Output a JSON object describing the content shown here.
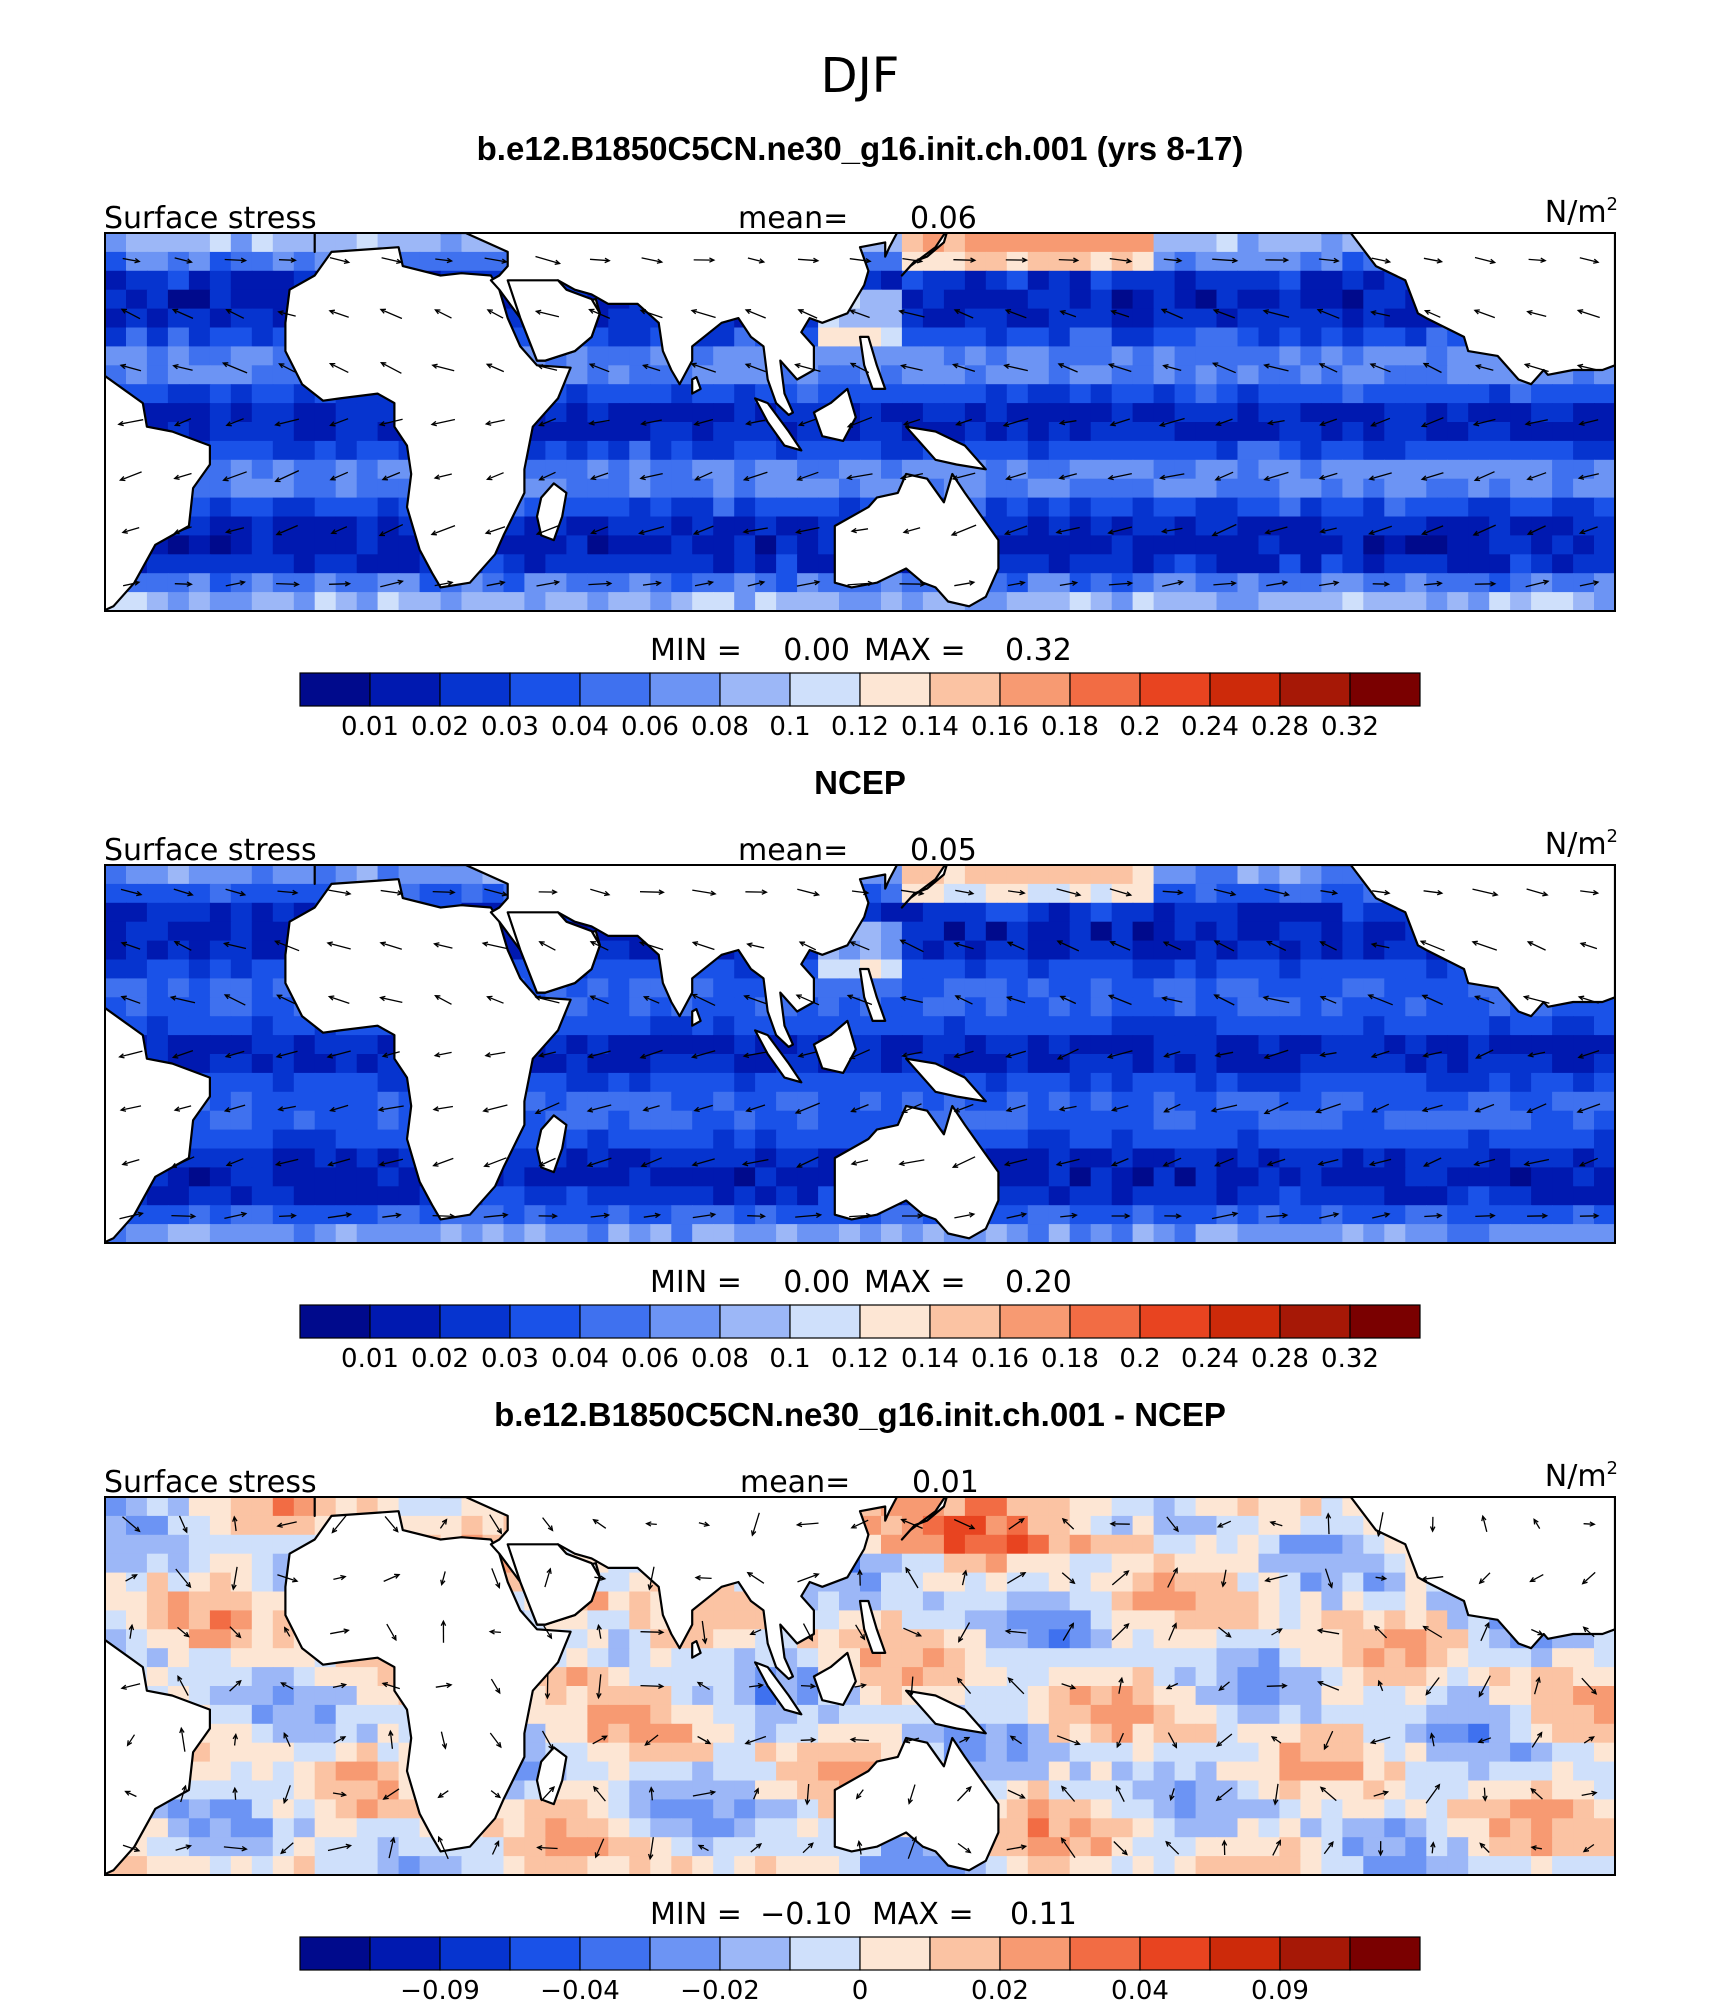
{
  "figure": {
    "season": "DJF",
    "colors": {
      "negative_scale": [
        "#000a8c",
        "#0019b0",
        "#0634cf",
        "#1a52e8",
        "#3f71ef",
        "#6c94f4",
        "#9cb7f7",
        "#cfe0fb"
      ],
      "positive_scale": [
        "#fde6d4",
        "#fbc3a3",
        "#f79a72",
        "#f26c44",
        "#e84420",
        "#cd2a0a",
        "#a61806",
        "#7a0000"
      ],
      "coast": "#000000"
    }
  },
  "panels": [
    {
      "title": "b.e12.B1850C5CN.ne30_g16.init.ch.001 (yrs 8-17)",
      "left_label": "Surface stress",
      "mean_label": "mean=",
      "mean_value": "0.06",
      "units": "N/m",
      "units_sup": "2",
      "min_label": "MIN =",
      "min_value": "0.00",
      "max_label": "MAX =",
      "max_value": "0.32",
      "colorbar_ticks": [
        "0.01",
        "0.02",
        "0.03",
        "0.04",
        "0.06",
        "0.08",
        "0.1",
        "0.12",
        "0.14",
        "0.16",
        "0.18",
        "0.2",
        "0.24",
        "0.28",
        "0.32"
      ],
      "field": "model"
    },
    {
      "title": "NCEP",
      "left_label": "Surface stress",
      "mean_label": "mean=",
      "mean_value": "0.05",
      "units": "N/m",
      "units_sup": "2",
      "min_label": "MIN =",
      "min_value": "0.00",
      "max_label": "MAX =",
      "max_value": "0.20",
      "colorbar_ticks": [
        "0.01",
        "0.02",
        "0.03",
        "0.04",
        "0.06",
        "0.08",
        "0.1",
        "0.12",
        "0.14",
        "0.16",
        "0.18",
        "0.2",
        "0.24",
        "0.28",
        "0.32"
      ],
      "field": "obs"
    },
    {
      "title": "b.e12.B1850C5CN.ne30_g16.init.ch.001 - NCEP",
      "left_label": "Surface stress",
      "mean_label": "mean=",
      "mean_value": "0.01",
      "units": "N/m",
      "units_sup": "2",
      "min_label": "MIN =",
      "min_value": "−0.10",
      "max_label": "MAX =",
      "max_value": "0.11",
      "colorbar_ticks": [
        "−0.09",
        "−0.04",
        "−0.02",
        "0",
        "0.02",
        "0.04",
        "0.09"
      ],
      "field": "diff"
    }
  ]
}
